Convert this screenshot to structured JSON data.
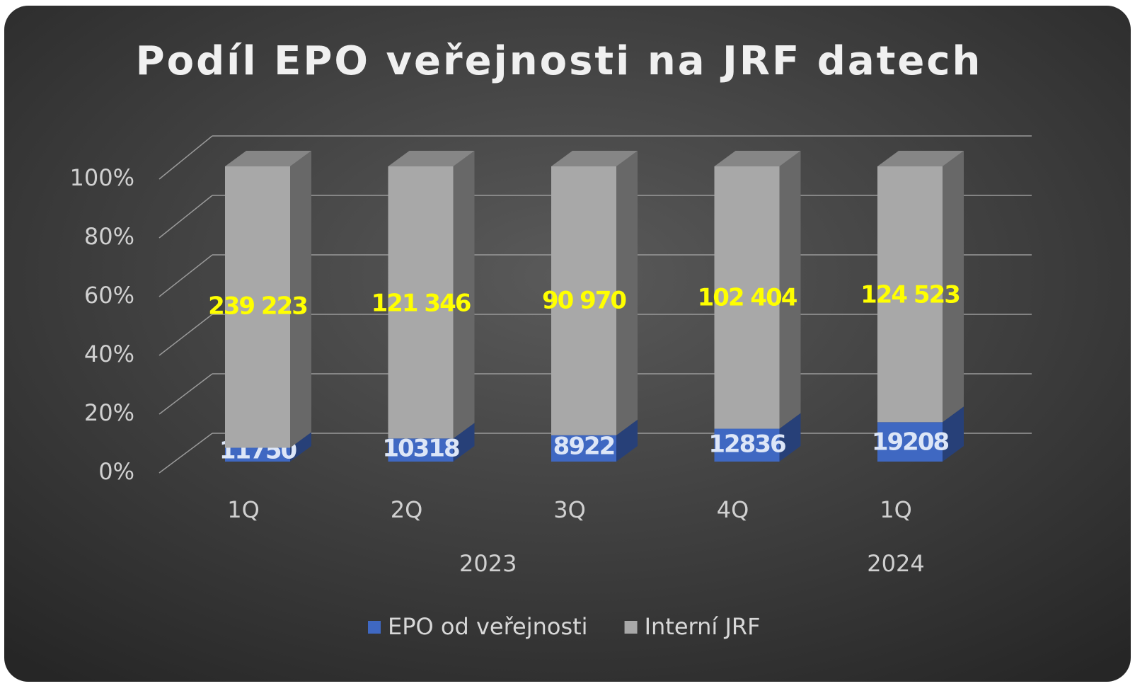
{
  "chart_data": {
    "type": "stacked_percent_bar_3d",
    "title": "Podíl EPO veřejnosti na JRF datech",
    "categories": [
      "1Q",
      "2Q",
      "3Q",
      "4Q",
      "1Q"
    ],
    "x_groups": [
      "2023",
      "2023",
      "2023",
      "2023",
      "2024"
    ],
    "series": [
      {
        "name": "EPO od veřejnosti",
        "color": "#3f68c2",
        "label_color": "#dde6f7",
        "values": [
          11750,
          10318,
          8922,
          12836,
          19208
        ]
      },
      {
        "name": "Interní JRF",
        "color": "#a8a8a8",
        "label_color": "#ffff00",
        "values": [
          239223,
          121346,
          90970,
          102404,
          124523
        ],
        "value_labels": [
          "239 223",
          "121 346",
          "90 970",
          "102 404",
          "124 523"
        ]
      }
    ],
    "ylim": [
      0,
      100
    ],
    "yticks": [
      {
        "value": 0,
        "label": "0%"
      },
      {
        "value": 20,
        "label": "20%"
      },
      {
        "value": 40,
        "label": "40%"
      },
      {
        "value": 60,
        "label": "60%"
      },
      {
        "value": 80,
        "label": "80%"
      },
      {
        "value": 100,
        "label": "100%"
      }
    ],
    "grid": true,
    "legend": "bottom"
  }
}
